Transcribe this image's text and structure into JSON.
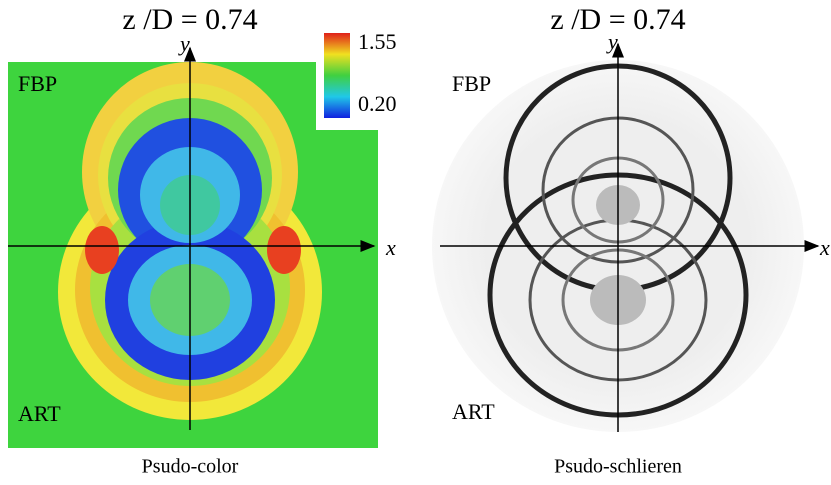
{
  "panels": [
    {
      "title": "z /D = 0.74",
      "top_label": "FBP",
      "bottom_label": "ART",
      "x_axis": "x",
      "y_axis": "y",
      "caption": "Psudo-color",
      "colorbar": {
        "max": "1.55",
        "min": "0.20"
      }
    },
    {
      "title": "z /D = 0.74",
      "top_label": "FBP",
      "bottom_label": "ART",
      "x_axis": "x",
      "y_axis": "y",
      "caption": "Psudo-schlieren"
    }
  ]
}
